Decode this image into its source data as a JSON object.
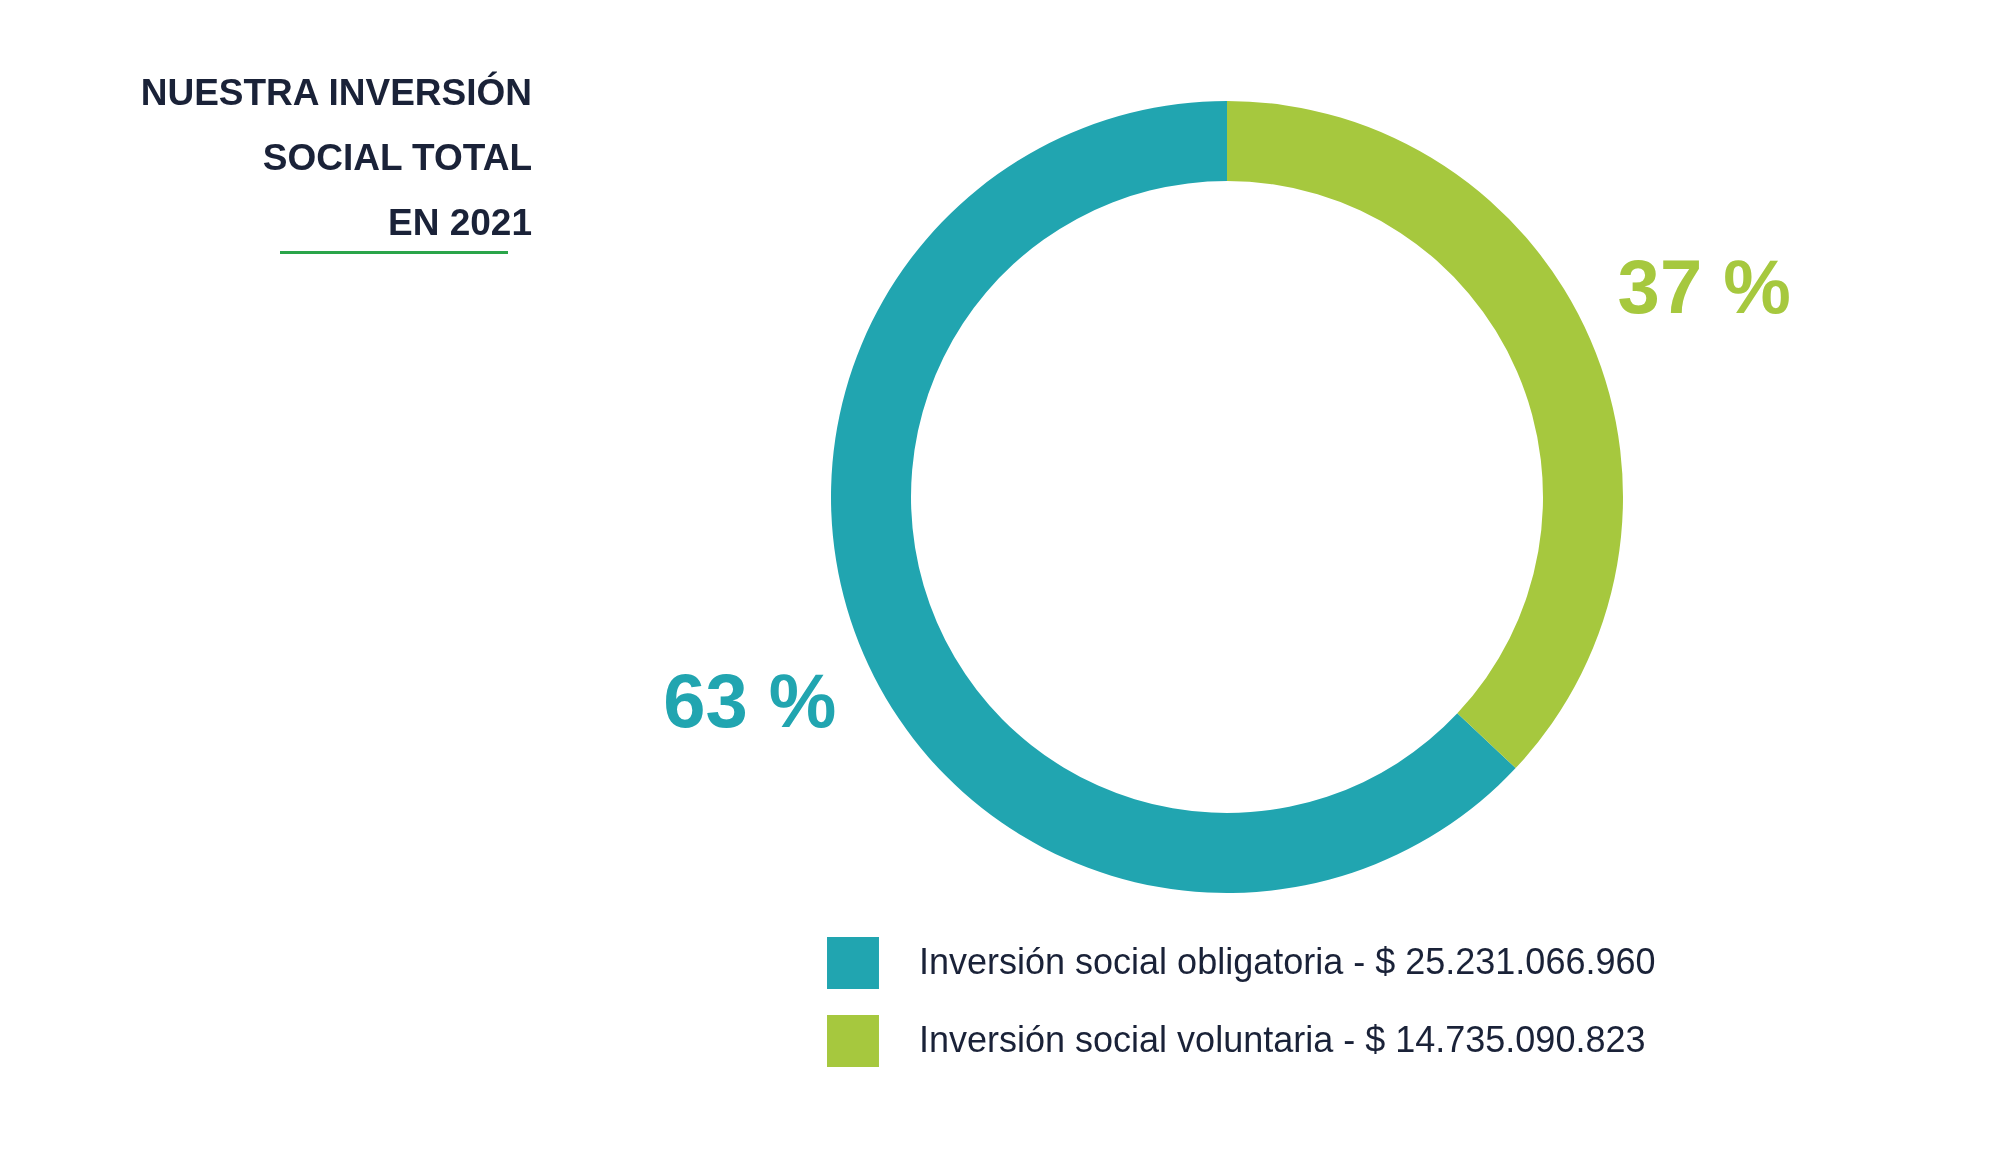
{
  "chart_data": {
    "type": "donut",
    "title": "NUESTRA INVERSIÓN\nSOCIAL TOTAL\nEN 2021",
    "categories": [
      "Inversión social obligatoria - $ 25.231.066.960",
      "Inversión social voluntaria - $ 14.735.090.823"
    ],
    "values": [
      63,
      37
    ],
    "colors": [
      "#21a5b0",
      "#a6c83e"
    ],
    "value_labels": [
      "63 %",
      "37 %"
    ],
    "legend": "bottom"
  }
}
